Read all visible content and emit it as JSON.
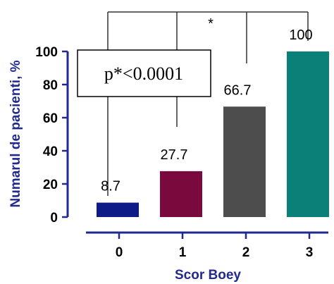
{
  "chart_data": {
    "type": "bar",
    "categories": [
      "0",
      "1",
      "2",
      "3"
    ],
    "values": [
      8.7,
      27.7,
      66.7,
      100
    ],
    "value_labels": [
      "8.7",
      "27.7",
      "66.7",
      "100"
    ],
    "colors": [
      "#0d1a87",
      "#7a0a3e",
      "#4d4d4d",
      "#0b8078"
    ],
    "xlabel": "Scor Boey",
    "ylabel": "Numarul de pacienti, %",
    "ylim": [
      0,
      100
    ],
    "yticks": [
      0,
      20,
      40,
      60,
      80,
      100
    ],
    "annotations": {
      "significance_marker": "*",
      "p_value": "p*<0.0001"
    },
    "grid": false,
    "axis_color": "#1f2a8c"
  }
}
